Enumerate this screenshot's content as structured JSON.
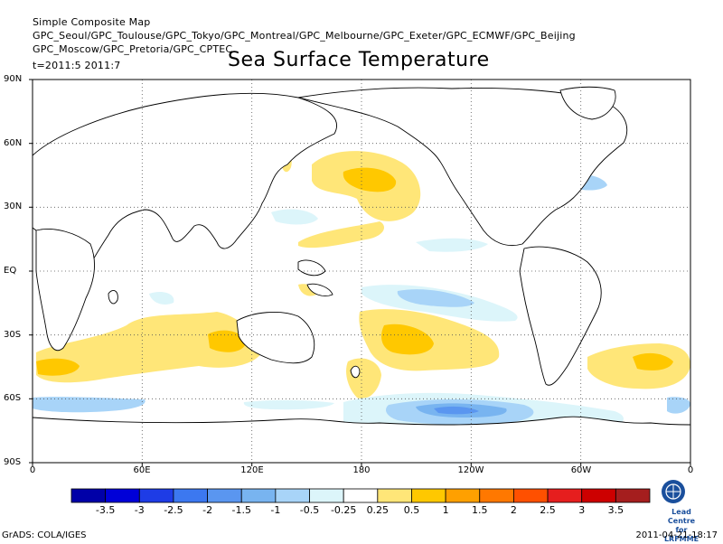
{
  "header": {
    "map_type": "Simple Composite Map",
    "centres_line1": "GPC_Seoul/GPC_Toulouse/GPC_Tokyo/GPC_Montreal/GPC_Melbourne/GPC_Exeter/GPC_ECMWF/GPC_Beijing",
    "centres_line2": "GPC_Moscow/GPC_Pretoria/GPC_CPTEC",
    "time": "t=2011:5 2011:7"
  },
  "title": "Sea Surface Temperature",
  "axes": {
    "lat_labels": [
      "90N",
      "60N",
      "30N",
      "EQ",
      "30S",
      "60S",
      "90S"
    ],
    "lon_labels": [
      "0",
      "60E",
      "120E",
      "180",
      "120W",
      "60W",
      "0"
    ]
  },
  "colorbar": {
    "colors": [
      "#0000a8",
      "#0000d8",
      "#1e3ce6",
      "#3c78f0",
      "#5a96f0",
      "#78b4f0",
      "#a8d4f8",
      "#dcf5fa",
      "#ffffff",
      "#ffe678",
      "#ffc800",
      "#ffa000",
      "#ff7800",
      "#ff5000",
      "#e61e1e",
      "#cd0000",
      "#a51e1e"
    ],
    "labels": [
      "-3.5",
      "-3",
      "-2.5",
      "-2",
      "-1.5",
      "-1",
      "-0.5",
      "-0.25",
      "0.25",
      "0.5",
      "1",
      "1.5",
      "2",
      "2.5",
      "3",
      "3.5"
    ]
  },
  "logo": {
    "name": "wmo-logo-icon",
    "line1": "Lead Centre",
    "line2": "for LRFMME"
  },
  "footer": {
    "left": "GrADS: COLA/IGES",
    "right": "2011-04-21-18:17"
  }
}
